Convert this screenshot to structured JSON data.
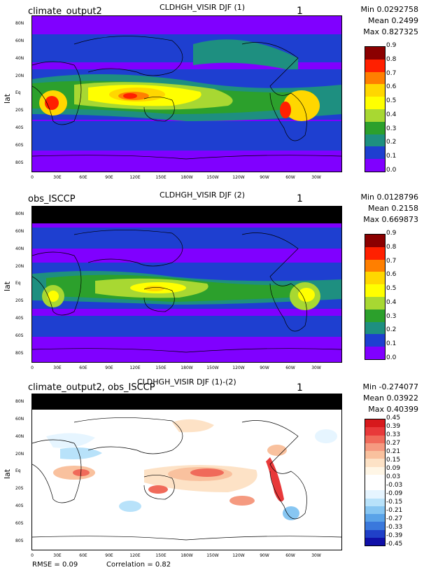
{
  "chart_data": [
    {
      "type": "heatmap",
      "title": "CLDHGH_VISIR DJF (1)",
      "model_label": "climate_output2",
      "panel_number": "1",
      "ylabel": "lat",
      "stats": {
        "min": "Min 0.0292758",
        "mean": "Mean 0.2499",
        "max": "Max 0.827325"
      },
      "lat_ticks": [
        "80N",
        "60N",
        "40N",
        "20N",
        "Eq",
        "20S",
        "40S",
        "60S",
        "80S"
      ],
      "lon_ticks": [
        "0",
        "30E",
        "60E",
        "90E",
        "120E",
        "150E",
        "180W",
        "150W",
        "120W",
        "90W",
        "60W",
        "30W"
      ],
      "colorbar": {
        "levels": [
          "0.9",
          "0.8",
          "0.7",
          "0.6",
          "0.5",
          "0.4",
          "0.3",
          "0.2",
          "0.1",
          "0.0"
        ],
        "colors": [
          "#8b0000",
          "#ff2000",
          "#ff7f00",
          "#ffd700",
          "#ffff00",
          "#a8d832",
          "#2ca02c",
          "#1e8f80",
          "#1e3fd0",
          "#8000ff"
        ]
      }
    },
    {
      "type": "heatmap",
      "title": "CLDHGH_VISIR DJF (2)",
      "model_label": "obs_ISCCP",
      "panel_number": "1",
      "ylabel": "lat",
      "stats": {
        "min": "Min 0.0128796",
        "mean": "Mean 0.2158",
        "max": "Max 0.669873"
      },
      "lat_ticks": [
        "80N",
        "60N",
        "40N",
        "20N",
        "Eq",
        "20S",
        "40S",
        "60S",
        "80S"
      ],
      "lon_ticks": [
        "0",
        "30E",
        "60E",
        "90E",
        "120E",
        "150E",
        "180W",
        "150W",
        "120W",
        "90W",
        "60W",
        "30W"
      ],
      "colorbar": {
        "levels": [
          "0.9",
          "0.8",
          "0.7",
          "0.6",
          "0.5",
          "0.4",
          "0.3",
          "0.2",
          "0.1",
          "0.0"
        ],
        "colors": [
          "#8b0000",
          "#ff2000",
          "#ff7f00",
          "#ffd700",
          "#ffff00",
          "#a8d832",
          "#2ca02c",
          "#1e8f80",
          "#1e3fd0",
          "#8000ff"
        ]
      }
    },
    {
      "type": "heatmap",
      "title": "CLDHGH_VISIR DJF (1)-(2)",
      "model_label": "climate_output2, obs_ISCCP",
      "panel_number": "1",
      "ylabel": "lat",
      "stats": {
        "min": "Min -0.274077",
        "mean": "Mean 0.03922",
        "max": "Max 0.40399"
      },
      "lat_ticks": [
        "80N",
        "60N",
        "40N",
        "20N",
        "Eq",
        "20S",
        "40S",
        "60S",
        "80S"
      ],
      "lon_ticks": [
        "0",
        "30E",
        "60E",
        "90E",
        "120E",
        "150E",
        "180W",
        "150W",
        "120W",
        "90W",
        "60W",
        "30W"
      ],
      "colorbar": {
        "levels": [
          "0.45",
          "0.39",
          "0.33",
          "0.27",
          "0.21",
          "0.15",
          "0.09",
          "0.03",
          "-0.03",
          "-0.09",
          "-0.15",
          "-0.21",
          "-0.27",
          "-0.33",
          "-0.39",
          "-0.45"
        ],
        "colors": [
          "#d7191c",
          "#e8393a",
          "#f06a5a",
          "#f59a80",
          "#f9c19e",
          "#fde2c6",
          "#fff6e6",
          "#ffffff",
          "#ffffff",
          "#e6f5ff",
          "#b8e2fa",
          "#87c6f2",
          "#5aa3e8",
          "#3a78dc",
          "#2040c8",
          "#1010a8"
        ]
      },
      "rmse": "RMSE = 0.09",
      "correlation": "Correlation = 0.82"
    }
  ]
}
